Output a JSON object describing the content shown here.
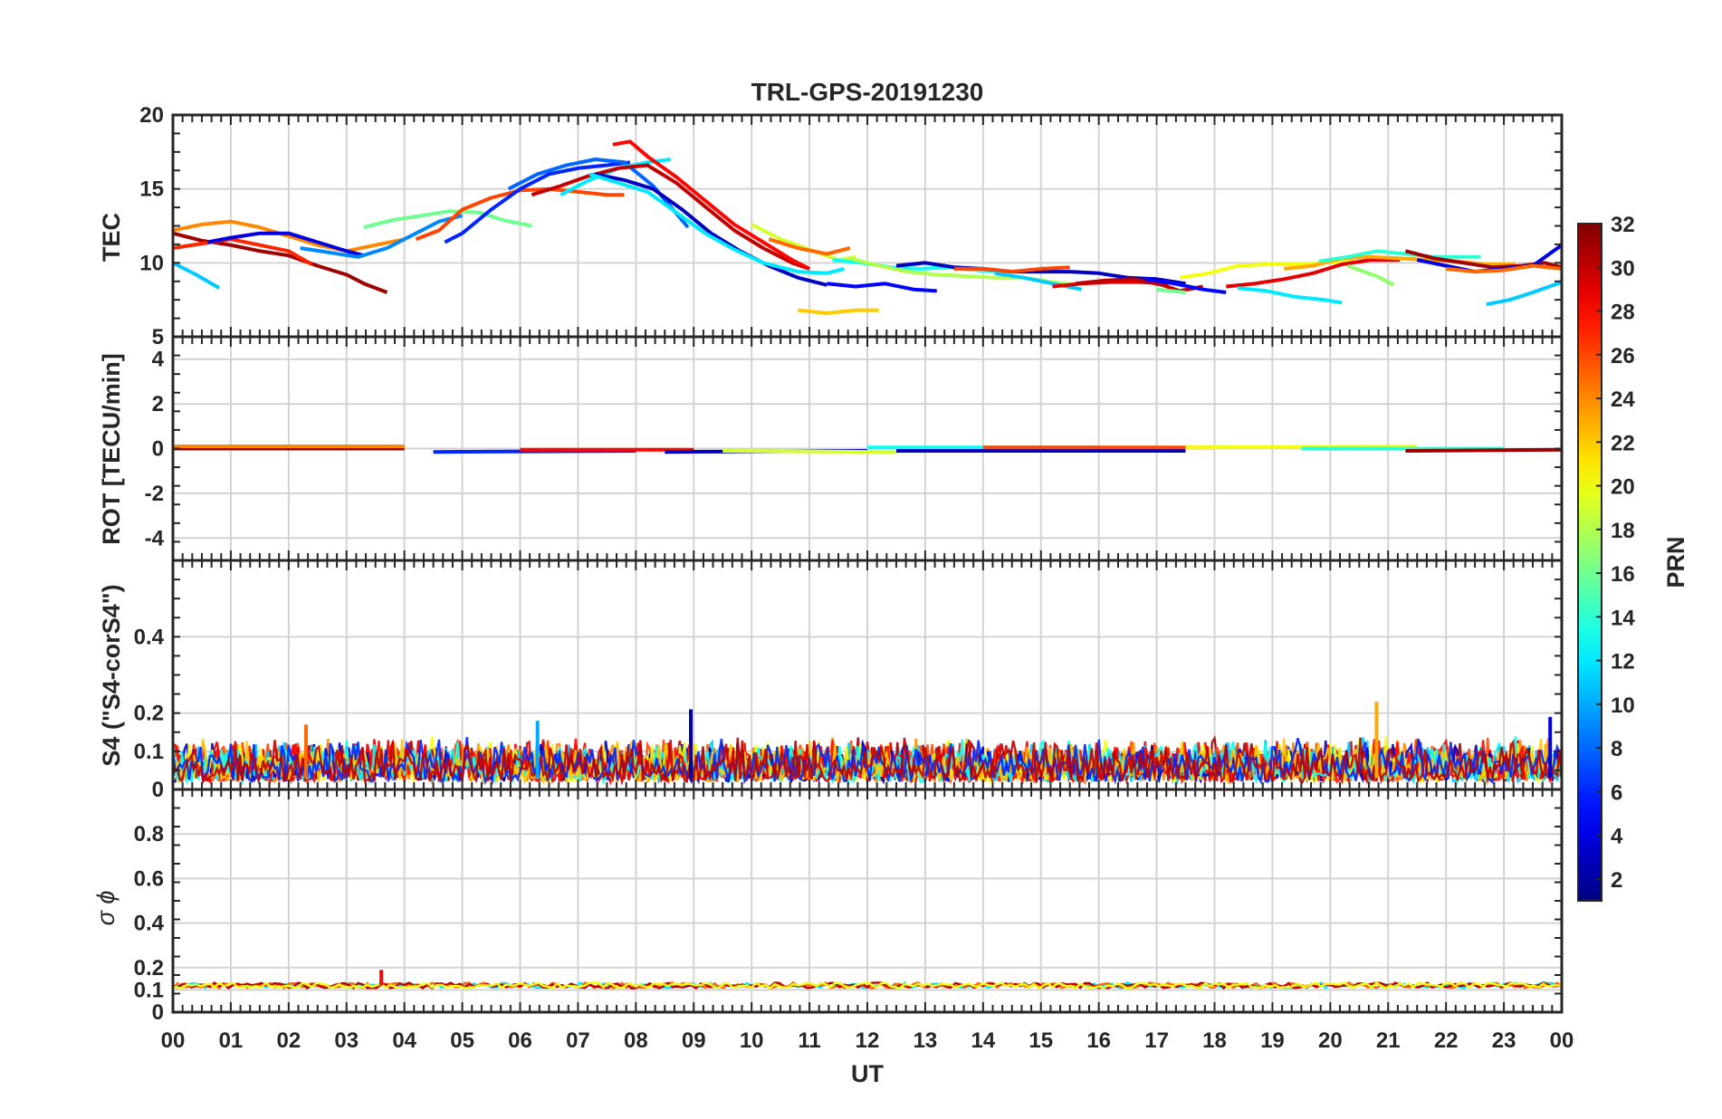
{
  "chart_data": {
    "type": "line",
    "title": "TRL-GPS-20191230",
    "xlabel": "UT",
    "x_ticks": [
      "00",
      "01",
      "02",
      "03",
      "04",
      "05",
      "06",
      "07",
      "08",
      "09",
      "10",
      "11",
      "12",
      "13",
      "14",
      "15",
      "16",
      "17",
      "18",
      "19",
      "20",
      "21",
      "22",
      "23",
      "00"
    ],
    "xlim": [
      0,
      24
    ],
    "colorbar": {
      "label": "PRN",
      "range": [
        1,
        32
      ],
      "ticks": [
        "2",
        "4",
        "6",
        "8",
        "10",
        "12",
        "14",
        "16",
        "18",
        "20",
        "22",
        "24",
        "26",
        "28",
        "30",
        "32"
      ],
      "tick_values": [
        2,
        4,
        6,
        8,
        10,
        12,
        14,
        16,
        18,
        20,
        22,
        24,
        26,
        28,
        30,
        32
      ]
    },
    "panels": [
      {
        "name": "TEC",
        "ylabel": "TEC",
        "ylim": [
          5,
          20
        ],
        "yticks": [
          5,
          10,
          15,
          20
        ],
        "ytick_labels": [
          "5",
          "10",
          "15",
          "20"
        ],
        "series": [
          {
            "prn": 31,
            "x": [
              0,
              0.5,
              1,
              1.5,
              2,
              2.5,
              3,
              3.3,
              3.7
            ],
            "y": [
              12,
              11.5,
              11.2,
              10.8,
              10.5,
              9.8,
              9.2,
              8.6,
              8
            ]
          },
          {
            "prn": 27,
            "x": [
              0,
              0.5,
              1,
              1.5,
              2,
              2.4
            ],
            "y": [
              11,
              11.3,
              11.6,
              11.2,
              10.8,
              9.9
            ]
          },
          {
            "prn": 24,
            "x": [
              0,
              0.5,
              1,
              1.5,
              2,
              2.5,
              3,
              3.5,
              4
            ],
            "y": [
              12.2,
              12.6,
              12.8,
              12.4,
              11.8,
              11.2,
              10.8,
              11.2,
              11.6
            ]
          },
          {
            "prn": 11,
            "x": [
              0,
              0.4,
              0.8
            ],
            "y": [
              10,
              9.2,
              8.3
            ]
          },
          {
            "prn": 4,
            "x": [
              0.6,
              1,
              1.5,
              2,
              2.5,
              3,
              3.3
            ],
            "y": [
              11.4,
              11.7,
              12,
              12,
              11.4,
              10.8,
              10.5
            ]
          },
          {
            "prn": 9,
            "x": [
              2.2,
              2.7,
              3.2,
              3.7,
              4.2,
              4.6,
              5
            ],
            "y": [
              11,
              10.7,
              10.4,
              11,
              12,
              12.8,
              13.2
            ]
          },
          {
            "prn": 16,
            "x": [
              3.3,
              3.8,
              4.3,
              4.8,
              5.3,
              5.7,
              6.2
            ],
            "y": [
              12.4,
              12.9,
              13.2,
              13.5,
              13.4,
              12.9,
              12.5
            ]
          },
          {
            "prn": 26,
            "x": [
              4.2,
              4.6,
              5,
              5.5,
              6,
              6.5,
              7,
              7.5,
              7.8
            ],
            "y": [
              11.6,
              12.2,
              13.6,
              14.4,
              14.9,
              15,
              14.8,
              14.6,
              14.6
            ]
          },
          {
            "prn": 6,
            "x": [
              4.7,
              5,
              5.5,
              6,
              6.5,
              7,
              7.5,
              7.9
            ],
            "y": [
              11.4,
              12,
              13.6,
              15,
              16,
              16.4,
              16.6,
              16.8
            ]
          },
          {
            "prn": 8,
            "x": [
              5.8,
              6.3,
              6.8,
              7.3,
              7.8,
              8.3,
              8.9
            ],
            "y": [
              15,
              16,
              16.6,
              17,
              16.8,
              15.2,
              12.4
            ]
          },
          {
            "prn": 12,
            "x": [
              6.7,
              7.2,
              7.7,
              8.2,
              8.6
            ],
            "y": [
              14.6,
              15.6,
              16.4,
              16.8,
              17
            ]
          },
          {
            "prn": 30,
            "x": [
              6.2,
              6.7,
              7.2,
              7.7,
              8.2,
              8.7,
              9.2,
              9.7,
              10.2,
              10.7,
              11
            ],
            "y": [
              14.6,
              15.2,
              15.9,
              16.4,
              16.6,
              15.4,
              13.8,
              12.2,
              11,
              10,
              9.6
            ]
          },
          {
            "prn": 28,
            "x": [
              7.6,
              7.9,
              8.2,
              8.7,
              9.2,
              9.7,
              10.2,
              10.7,
              11
            ],
            "y": [
              18,
              18.2,
              17.2,
              15.8,
              14.2,
              12.6,
              11.4,
              10.2,
              9.6
            ]
          },
          {
            "prn": 3,
            "x": [
              7.3,
              7.8,
              8.3,
              8.8,
              9.3,
              9.8,
              10.3,
              10.8,
              11.3
            ],
            "y": [
              16,
              15.6,
              15,
              13.6,
              12,
              10.8,
              9.8,
              9,
              8.5
            ]
          },
          {
            "prn": 12,
            "x": [
              7.2,
              7.7,
              8.2,
              8.7,
              9.2,
              9.7,
              10.2,
              10.8,
              11.3,
              11.6
            ],
            "y": [
              16,
              15.4,
              14.8,
              13.4,
              12,
              10.9,
              10,
              9.4,
              9.3,
              9.6
            ]
          },
          {
            "prn": 19,
            "x": [
              10,
              10.5,
              11,
              11.5,
              11.8
            ],
            "y": [
              12.6,
              11.6,
              10.9,
              10.2,
              10.4
            ]
          },
          {
            "prn": 25,
            "x": [
              10.3,
              10.8,
              11.3,
              11.7
            ],
            "y": [
              11.6,
              11,
              10.6,
              11
            ]
          },
          {
            "prn": 22,
            "x": [
              10.8,
              11.3,
              11.8,
              12.2
            ],
            "y": [
              6.8,
              6.6,
              6.8,
              6.8
            ]
          },
          {
            "prn": 5,
            "x": [
              11.3,
              11.8,
              12.3,
              12.8,
              13.2
            ],
            "y": [
              8.6,
              8.4,
              8.6,
              8.2,
              8.1
            ]
          },
          {
            "prn": 13,
            "x": [
              11.4,
              11.9,
              12.4,
              12.9,
              13.4,
              13.9,
              14.4
            ],
            "y": [
              10.2,
              10,
              9.7,
              9.6,
              9.7,
              9.5,
              9.4
            ]
          },
          {
            "prn": 18,
            "x": [
              11.7,
              12.2,
              12.7,
              13.2,
              13.7,
              14.2,
              14.7,
              15.2,
              15.6
            ],
            "y": [
              10.3,
              9.8,
              9.4,
              9.2,
              9.1,
              9,
              9,
              8.7,
              8.5
            ]
          },
          {
            "prn": 3,
            "x": [
              12.5,
              13,
              13.5,
              14,
              14.5,
              15,
              15.5,
              16,
              16.5,
              17,
              17.5
            ],
            "y": [
              9.8,
              10,
              9.7,
              9.6,
              9.4,
              9.4,
              9.4,
              9.3,
              9,
              8.9,
              8.6
            ]
          },
          {
            "prn": 26,
            "x": [
              13.5,
              14,
              14.5,
              15,
              15.5
            ],
            "y": [
              9.6,
              9.6,
              9.4,
              9.6,
              9.7
            ]
          },
          {
            "prn": 11,
            "x": [
              14.2,
              14.7,
              15.2,
              15.7
            ],
            "y": [
              9.3,
              9,
              8.6,
              8.2
            ]
          },
          {
            "prn": 29,
            "x": [
              15.2,
              15.7,
              16.2,
              16.7,
              17.2
            ],
            "y": [
              8.4,
              8.6,
              8.7,
              8.7,
              8.6
            ]
          },
          {
            "prn": 30,
            "x": [
              15.6,
              16.1,
              16.6,
              17.1,
              17.4,
              17.8
            ],
            "y": [
              8.6,
              8.8,
              8.9,
              8.5,
              8.1,
              8.4
            ]
          },
          {
            "prn": 5,
            "x": [
              16.8,
              17.3,
              17.8,
              18.2
            ],
            "y": [
              8.9,
              8.6,
              8.2,
              8
            ]
          },
          {
            "prn": 16,
            "x": [
              17,
              17.5
            ],
            "y": [
              8.2,
              8
            ]
          },
          {
            "prn": 20,
            "x": [
              17.4,
              17.9,
              18.4,
              18.9,
              19.4,
              19.9,
              20.4
            ],
            "y": [
              9,
              9.3,
              9.8,
              9.9,
              9.9,
              10,
              10.2
            ]
          },
          {
            "prn": 29,
            "x": [
              18.2,
              18.7,
              19.2,
              19.7,
              20.2,
              20.7,
              21.2
            ],
            "y": [
              8.4,
              8.6,
              8.9,
              9.3,
              9.9,
              10.2,
              10.2
            ]
          },
          {
            "prn": 12,
            "x": [
              18.4,
              18.9,
              19.4,
              19.9,
              20.2
            ],
            "y": [
              8.3,
              8.1,
              7.7,
              7.5,
              7.3
            ]
          },
          {
            "prn": 23,
            "x": [
              19.2,
              19.7,
              20.2,
              20.7,
              21.2,
              21.7,
              22.2,
              22.7,
              23.2
            ],
            "y": [
              9.6,
              9.8,
              10.3,
              10.4,
              10.3,
              10.2,
              10.1,
              9.9,
              9.9
            ]
          },
          {
            "prn": 14,
            "x": [
              19.8,
              20.3,
              20.8,
              21.3,
              21.8,
              22.3,
              22.6
            ],
            "y": [
              10.1,
              10.4,
              10.8,
              10.6,
              10.4,
              10.4,
              10.4
            ]
          },
          {
            "prn": 17,
            "x": [
              20.3,
              20.8,
              21.1
            ],
            "y": [
              9.8,
              9.1,
              8.5
            ]
          },
          {
            "prn": 31,
            "x": [
              21.3,
              21.8,
              22.3,
              22.8,
              23.3,
              23.7,
              24
            ],
            "y": [
              10.8,
              10.3,
              10,
              9.7,
              9.8,
              10,
              9.7
            ]
          },
          {
            "prn": 4,
            "x": [
              21.5,
              22,
              22.5,
              23,
              23.5,
              24
            ],
            "y": [
              10.2,
              9.8,
              9.4,
              9.6,
              9.8,
              11.2
            ]
          },
          {
            "prn": 11,
            "x": [
              22.7,
              23.1,
              23.5,
              24
            ],
            "y": [
              7.2,
              7.5,
              8,
              8.7
            ]
          },
          {
            "prn": 25,
            "x": [
              22,
              22.5,
              23,
              23.5,
              24
            ],
            "y": [
              9.6,
              9.4,
              9.5,
              9.8,
              9.6
            ]
          }
        ]
      },
      {
        "name": "ROT",
        "ylabel": "ROT [TECU/min]",
        "ylim": [
          -5,
          5
        ],
        "yticks": [
          -4,
          -2,
          0,
          2,
          4
        ],
        "ytick_labels": [
          "-4",
          "-2",
          "0",
          "2",
          "4"
        ],
        "series": [
          {
            "prn": 31,
            "x": [
              0,
              4
            ],
            "y": [
              0,
              0
            ]
          },
          {
            "prn": 24,
            "x": [
              0,
              4
            ],
            "y": [
              0.1,
              0.1
            ]
          },
          {
            "prn": 6,
            "x": [
              4.5,
              8
            ],
            "y": [
              -0.15,
              -0.1
            ]
          },
          {
            "prn": 28,
            "x": [
              6,
              9
            ],
            "y": [
              -0.05,
              -0.05
            ]
          },
          {
            "prn": 3,
            "x": [
              8.5,
              12
            ],
            "y": [
              -0.15,
              -0.1
            ]
          },
          {
            "prn": 19,
            "x": [
              9.5,
              12.5
            ],
            "y": [
              -0.1,
              -0.15
            ]
          },
          {
            "prn": 13,
            "x": [
              12,
              16
            ],
            "y": [
              0.05,
              0.05
            ]
          },
          {
            "prn": 3,
            "x": [
              12.5,
              17.5
            ],
            "y": [
              -0.1,
              -0.1
            ]
          },
          {
            "prn": 26,
            "x": [
              14,
              18
            ],
            "y": [
              0.05,
              0.05
            ]
          },
          {
            "prn": 20,
            "x": [
              17.5,
              21.5
            ],
            "y": [
              0.05,
              0.1
            ]
          },
          {
            "prn": 14,
            "x": [
              19.5,
              23
            ],
            "y": [
              0,
              0
            ]
          },
          {
            "prn": 31,
            "x": [
              21.3,
              24
            ],
            "y": [
              -0.1,
              -0.05
            ]
          }
        ]
      },
      {
        "name": "S4",
        "ylabel": "S4 (\"S4-corS4\")",
        "ylim": [
          0,
          0.6
        ],
        "yticks": [
          0,
          0.1,
          0.2,
          0.4
        ],
        "ytick_labels": [
          "0",
          "0.1",
          "0.2",
          "0.4"
        ],
        "typical_range": [
          0.02,
          0.14
        ],
        "peaks": [
          {
            "x": 8.95,
            "y": 0.21,
            "prn": 2
          },
          {
            "x": 20.8,
            "y": 0.23,
            "prn": 23
          },
          {
            "x": 2.3,
            "y": 0.17,
            "prn": 25
          },
          {
            "x": 6.3,
            "y": 0.18,
            "prn": 10
          },
          {
            "x": 23.8,
            "y": 0.19,
            "prn": 4
          }
        ]
      },
      {
        "name": "sigma_phi",
        "ylabel": "σ ϕ",
        "ylim": [
          0,
          1
        ],
        "yticks": [
          0,
          0.1,
          0.2,
          0.4,
          0.6,
          0.8
        ],
        "ytick_labels": [
          "0",
          "0.1",
          "0.2",
          "0.4",
          "0.6",
          "0.8"
        ],
        "typical_value": 0.12,
        "peaks": [
          {
            "x": 3.6,
            "y": 0.19,
            "prn": 28
          }
        ]
      }
    ]
  }
}
